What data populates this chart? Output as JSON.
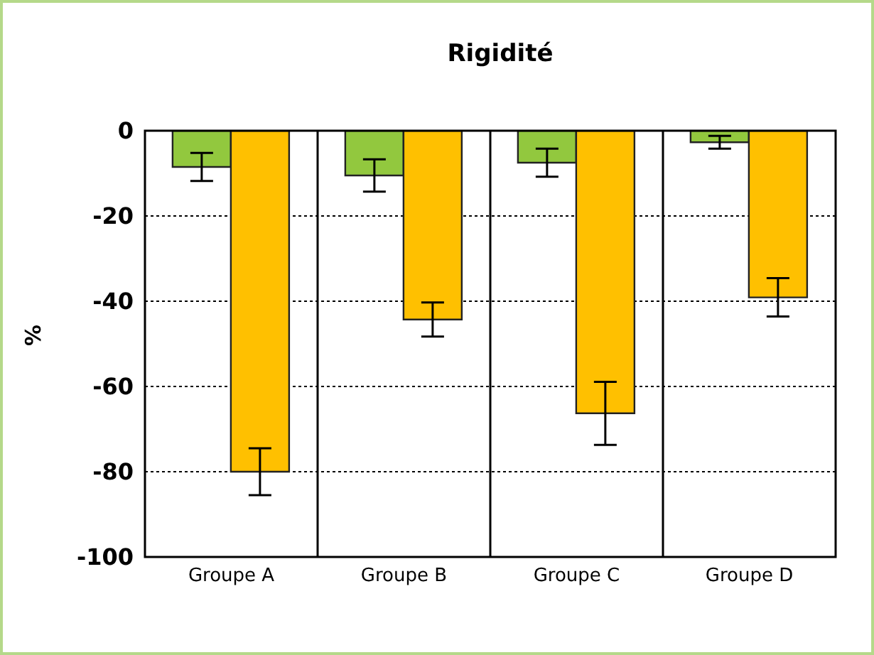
{
  "chart_data": {
    "type": "bar",
    "title": "Rigidité",
    "ylabel": "%",
    "categories": [
      "Groupe A",
      "Groupe B",
      "Groupe C",
      "Groupe D"
    ],
    "series": [
      {
        "color": "#92c83e",
        "values": [
          -8.5,
          -10.5,
          -7.5,
          -2.7
        ],
        "errors": [
          3.3,
          3.8,
          3.3,
          1.5
        ]
      },
      {
        "color": "#ffc000",
        "values": [
          -80,
          -44.3,
          -66.3,
          -39.1
        ],
        "errors": [
          5.5,
          4,
          7.4,
          4.5
        ]
      }
    ],
    "ylim": [
      -100,
      0
    ],
    "yticks": [
      -100,
      -80,
      -60,
      -40,
      -20,
      0
    ],
    "grid": true,
    "legend": false
  }
}
